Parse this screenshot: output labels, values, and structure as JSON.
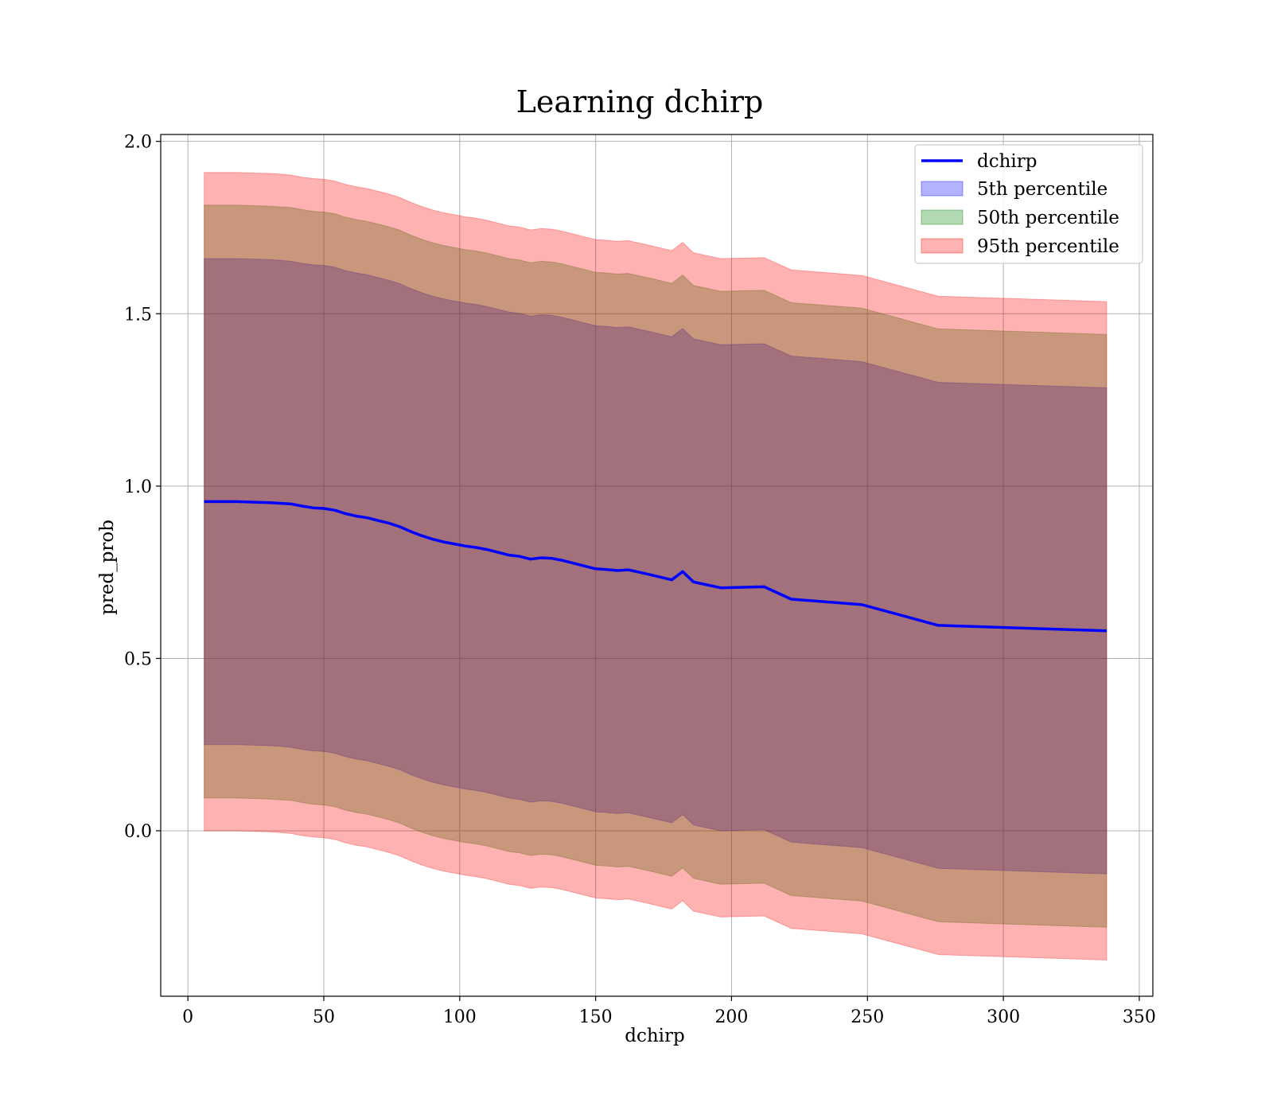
{
  "chart_data": {
    "type": "area",
    "title": "Learning dchirp",
    "xlabel": "dchirp",
    "ylabel": "pred_prob",
    "xlim": [
      -10,
      355
    ],
    "ylim": [
      -0.48,
      2.02
    ],
    "xticks": [
      0,
      50,
      100,
      150,
      200,
      250,
      300,
      350
    ],
    "yticks": [
      0.0,
      0.5,
      1.0,
      1.5,
      2.0
    ],
    "xtick_labels": [
      "0",
      "50",
      "100",
      "150",
      "200",
      "250",
      "300",
      "350"
    ],
    "ytick_labels": [
      "0.0",
      "0.5",
      "1.0",
      "1.5",
      "2.0"
    ],
    "grid": true,
    "legend_position": "top-right",
    "legend": [
      "dchirp",
      "5th percentile",
      "50th percentile",
      "95th percentile"
    ],
    "x": [
      6,
      18,
      30,
      34,
      38,
      42,
      46,
      50,
      54,
      58,
      62,
      66,
      70,
      74,
      78,
      82,
      86,
      90,
      94,
      98,
      102,
      106,
      110,
      114,
      118,
      122,
      126,
      130,
      134,
      138,
      142,
      146,
      150,
      154,
      158,
      162,
      170,
      178,
      182,
      186,
      196,
      212,
      222,
      248,
      276,
      338
    ],
    "series": [
      {
        "name": "dchirp",
        "values": [
          0.955,
          0.955,
          0.952,
          0.95,
          0.948,
          0.942,
          0.937,
          0.935,
          0.93,
          0.92,
          0.913,
          0.908,
          0.9,
          0.892,
          0.882,
          0.868,
          0.856,
          0.846,
          0.838,
          0.832,
          0.826,
          0.822,
          0.816,
          0.808,
          0.8,
          0.796,
          0.788,
          0.792,
          0.79,
          0.784,
          0.776,
          0.768,
          0.76,
          0.758,
          0.755,
          0.757,
          0.743,
          0.728,
          0.752,
          0.722,
          0.705,
          0.708,
          0.672,
          0.656,
          0.596,
          0.58
        ]
      },
      {
        "name": "5th percentile",
        "lower": [
          0.25,
          0.25,
          0.247,
          0.245,
          0.242,
          0.236,
          0.232,
          0.23,
          0.225,
          0.215,
          0.208,
          0.203,
          0.195,
          0.187,
          0.177,
          0.163,
          0.151,
          0.141,
          0.133,
          0.127,
          0.121,
          0.117,
          0.111,
          0.103,
          0.095,
          0.091,
          0.083,
          0.087,
          0.085,
          0.079,
          0.071,
          0.063,
          0.055,
          0.053,
          0.05,
          0.052,
          0.038,
          0.023,
          0.047,
          0.017,
          0.0,
          0.003,
          -0.033,
          -0.049,
          -0.109,
          -0.125
        ],
        "upper": [
          1.66,
          1.66,
          1.657,
          1.655,
          1.652,
          1.646,
          1.642,
          1.64,
          1.635,
          1.625,
          1.618,
          1.613,
          1.605,
          1.597,
          1.587,
          1.573,
          1.561,
          1.551,
          1.543,
          1.537,
          1.531,
          1.527,
          1.521,
          1.513,
          1.505,
          1.501,
          1.493,
          1.497,
          1.495,
          1.489,
          1.481,
          1.473,
          1.465,
          1.463,
          1.46,
          1.462,
          1.448,
          1.433,
          1.457,
          1.427,
          1.41,
          1.413,
          1.377,
          1.361,
          1.301,
          1.285
        ]
      },
      {
        "name": "50th percentile",
        "lower": [
          0.095,
          0.095,
          0.092,
          0.09,
          0.088,
          0.082,
          0.077,
          0.075,
          0.07,
          0.06,
          0.053,
          0.048,
          0.04,
          0.032,
          0.022,
          0.008,
          -0.004,
          -0.014,
          -0.022,
          -0.028,
          -0.034,
          -0.038,
          -0.044,
          -0.052,
          -0.06,
          -0.064,
          -0.072,
          -0.068,
          -0.07,
          -0.076,
          -0.084,
          -0.092,
          -0.1,
          -0.102,
          -0.105,
          -0.103,
          -0.117,
          -0.132,
          -0.108,
          -0.138,
          -0.155,
          -0.152,
          -0.188,
          -0.204,
          -0.264,
          -0.28
        ],
        "upper": [
          1.815,
          1.815,
          1.812,
          1.81,
          1.808,
          1.802,
          1.797,
          1.795,
          1.79,
          1.78,
          1.773,
          1.768,
          1.76,
          1.752,
          1.742,
          1.728,
          1.716,
          1.706,
          1.698,
          1.692,
          1.686,
          1.682,
          1.676,
          1.668,
          1.66,
          1.656,
          1.648,
          1.652,
          1.65,
          1.644,
          1.636,
          1.628,
          1.62,
          1.618,
          1.615,
          1.617,
          1.603,
          1.588,
          1.612,
          1.582,
          1.565,
          1.568,
          1.532,
          1.516,
          1.456,
          1.44
        ]
      },
      {
        "name": "95th percentile",
        "lower": [
          0.0,
          0.0,
          -0.003,
          -0.005,
          -0.008,
          -0.014,
          -0.018,
          -0.02,
          -0.025,
          -0.035,
          -0.042,
          -0.047,
          -0.055,
          -0.063,
          -0.073,
          -0.087,
          -0.099,
          -0.109,
          -0.117,
          -0.123,
          -0.129,
          -0.133,
          -0.139,
          -0.147,
          -0.155,
          -0.159,
          -0.167,
          -0.163,
          -0.165,
          -0.171,
          -0.179,
          -0.187,
          -0.195,
          -0.197,
          -0.2,
          -0.198,
          -0.212,
          -0.227,
          -0.203,
          -0.233,
          -0.25,
          -0.247,
          -0.283,
          -0.299,
          -0.359,
          -0.375
        ],
        "upper": [
          1.91,
          1.91,
          1.907,
          1.905,
          1.902,
          1.896,
          1.892,
          1.89,
          1.885,
          1.875,
          1.868,
          1.863,
          1.855,
          1.847,
          1.837,
          1.823,
          1.811,
          1.801,
          1.793,
          1.787,
          1.781,
          1.777,
          1.771,
          1.763,
          1.755,
          1.751,
          1.743,
          1.747,
          1.745,
          1.739,
          1.731,
          1.723,
          1.715,
          1.713,
          1.71,
          1.712,
          1.698,
          1.683,
          1.707,
          1.677,
          1.66,
          1.663,
          1.627,
          1.611,
          1.551,
          1.535
        ]
      }
    ],
    "colors": {
      "line": "#0000ff",
      "p5": "#0000ff",
      "p50": "#008000",
      "p95": "#ff0000",
      "grid": "#b0b0b0",
      "axes": "#000000"
    },
    "band_opacity": 0.3
  }
}
